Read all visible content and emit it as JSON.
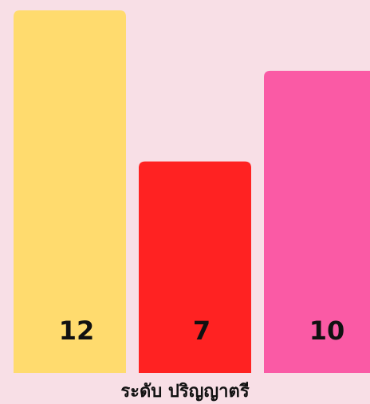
{
  "chart_data": {
    "type": "bar",
    "xlabel": "ระดับ ปริญญาตรี",
    "values": [
      12,
      7,
      10
    ],
    "colors": [
      "#ffdb6e",
      "#ff2222",
      "#fa5aa5"
    ],
    "ylim": [
      0,
      12
    ]
  }
}
